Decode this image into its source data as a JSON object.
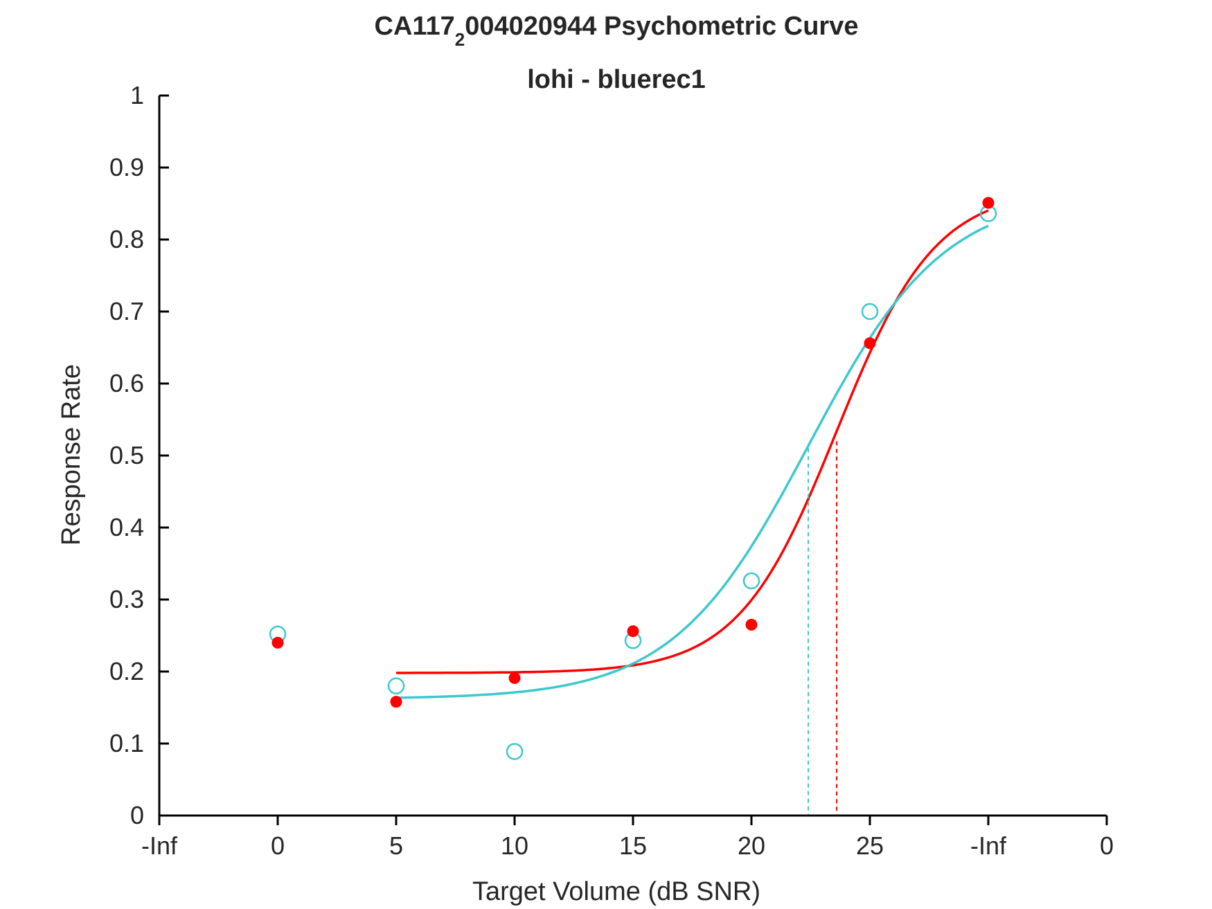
{
  "chart_data": {
    "type": "scatter",
    "title": {
      "main": "CA117",
      "subscript": "2",
      "rest": "004020944 Psychometric Curve",
      "line2": "lohi - bluerec1"
    },
    "xlabel": "Target Volume (dB SNR)",
    "ylabel": "Response Rate",
    "xlim": [
      -1,
      7
    ],
    "ylim": [
      0,
      1
    ],
    "x_ticks": [
      {
        "pos": -1,
        "label": "-Inf"
      },
      {
        "pos": 0,
        "label": "0"
      },
      {
        "pos": 1,
        "label": "5"
      },
      {
        "pos": 2,
        "label": "10"
      },
      {
        "pos": 3,
        "label": "15"
      },
      {
        "pos": 4,
        "label": "20"
      },
      {
        "pos": 5,
        "label": "25"
      },
      {
        "pos": 6,
        "label": "-Inf"
      },
      {
        "pos": 7,
        "label": "0"
      }
    ],
    "y_ticks": [
      {
        "value": 0,
        "label": "0"
      },
      {
        "value": 0.1,
        "label": "0.1"
      },
      {
        "value": 0.2,
        "label": "0.2"
      },
      {
        "value": 0.3,
        "label": "0.3"
      },
      {
        "value": 0.4,
        "label": "0.4"
      },
      {
        "value": 0.5,
        "label": "0.5"
      },
      {
        "value": 0.6,
        "label": "0.6"
      },
      {
        "value": 0.7,
        "label": "0.7"
      },
      {
        "value": 0.8,
        "label": "0.8"
      },
      {
        "value": 0.9,
        "label": "0.9"
      },
      {
        "value": 1,
        "label": "1"
      }
    ],
    "series": [
      {
        "color": "#ff0000",
        "marker": "filled-circle",
        "points": [
          {
            "x": 0,
            "y": 0.24
          },
          {
            "x": 1,
            "y": 0.158
          },
          {
            "x": 2,
            "y": 0.191
          },
          {
            "x": 3,
            "y": 0.256
          },
          {
            "x": 4,
            "y": 0.265
          },
          {
            "x": 5,
            "y": 0.656
          },
          {
            "x": 6,
            "y": 0.851
          }
        ],
        "fit": {
          "min": 0.198,
          "max": 0.87,
          "midpoint": 4.72,
          "slope": 2.4,
          "x_range": [
            1,
            6
          ]
        },
        "threshold": {
          "x": 4.72,
          "y": 0.52
        }
      },
      {
        "color": "#3cc8cc",
        "marker": "open-circle",
        "points": [
          {
            "x": 0,
            "y": 0.252
          },
          {
            "x": 1,
            "y": 0.18
          },
          {
            "x": 2,
            "y": 0.089
          },
          {
            "x": 3,
            "y": 0.243
          },
          {
            "x": 4,
            "y": 0.326
          },
          {
            "x": 5,
            "y": 0.7
          },
          {
            "x": 6,
            "y": 0.836
          }
        ],
        "fit": {
          "min": 0.162,
          "max": 0.865,
          "midpoint": 4.48,
          "slope": 1.75,
          "x_range": [
            1,
            6
          ]
        },
        "threshold": {
          "x": 4.48,
          "y": 0.51
        }
      }
    ]
  }
}
